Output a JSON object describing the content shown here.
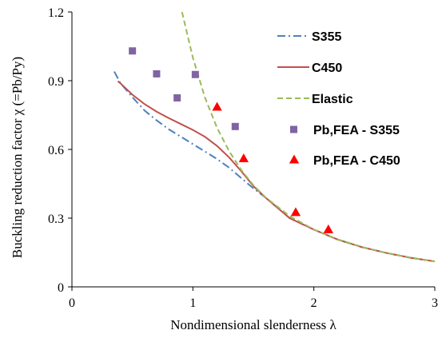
{
  "chart_data": {
    "type": "line",
    "title": "",
    "xlabel": "Nondimensional slenderness λ",
    "ylabel": "Buckling reduction factor χ (=Pb/Py)",
    "xlim": [
      0,
      3
    ],
    "ylim": [
      0,
      1.2
    ],
    "x_ticks": [
      "0",
      "1",
      "2",
      "3"
    ],
    "y_ticks": [
      "0",
      "0.3",
      "0.6",
      "0.9",
      "1.2"
    ],
    "grid": false,
    "legend_position": "top-right",
    "series": [
      {
        "name": "S355",
        "style": "dash-dot line",
        "color": "#4F81BD",
        "x": [
          0.35,
          0.4,
          0.5,
          0.6,
          0.7,
          0.8,
          0.9,
          1.0,
          1.1,
          1.2,
          1.3,
          1.4,
          1.5,
          1.6,
          1.8,
          2.0,
          2.2,
          2.4,
          2.6,
          2.8,
          3.0
        ],
        "y": [
          0.94,
          0.89,
          0.828,
          0.77,
          0.727,
          0.688,
          0.656,
          0.623,
          0.591,
          0.558,
          0.52,
          0.475,
          0.43,
          0.39,
          0.3,
          0.25,
          0.206,
          0.173,
          0.148,
          0.127,
          0.111
        ]
      },
      {
        "name": "C450",
        "style": "solid line",
        "color": "#C0504D",
        "x": [
          0.38,
          0.4,
          0.5,
          0.6,
          0.7,
          0.8,
          0.9,
          1.0,
          1.1,
          1.2,
          1.3,
          1.4,
          1.5,
          1.6,
          1.8,
          2.0,
          2.2,
          2.4,
          2.6,
          2.8,
          3.0
        ],
        "y": [
          0.898,
          0.889,
          0.839,
          0.798,
          0.765,
          0.737,
          0.711,
          0.685,
          0.655,
          0.615,
          0.565,
          0.505,
          0.44,
          0.39,
          0.3,
          0.25,
          0.206,
          0.173,
          0.148,
          0.127,
          0.111
        ]
      },
      {
        "name": "Elastic",
        "style": "dashed line",
        "color": "#9BBB59",
        "x": [
          0.91,
          1.0,
          1.1,
          1.2,
          1.3,
          1.4,
          1.5,
          1.6,
          1.8,
          2.0,
          2.2,
          2.4,
          2.6,
          2.8,
          3.0
        ],
        "y": [
          1.2,
          1.0,
          0.826,
          0.694,
          0.592,
          0.51,
          0.444,
          0.391,
          0.309,
          0.25,
          0.207,
          0.174,
          0.148,
          0.128,
          0.111
        ]
      },
      {
        "name": "Pb,FEA - S355",
        "style": "square markers",
        "color": "#8064A2",
        "x": [
          0.5,
          0.7,
          0.87,
          1.02,
          1.35
        ],
        "y": [
          1.03,
          0.93,
          0.825,
          0.927,
          0.7
        ]
      },
      {
        "name": "Pb,FEA - C450",
        "style": "triangle markers",
        "color": "#FF0000",
        "x": [
          1.2,
          1.42,
          1.85,
          2.12
        ],
        "y": [
          0.785,
          0.56,
          0.325,
          0.25
        ]
      }
    ]
  }
}
